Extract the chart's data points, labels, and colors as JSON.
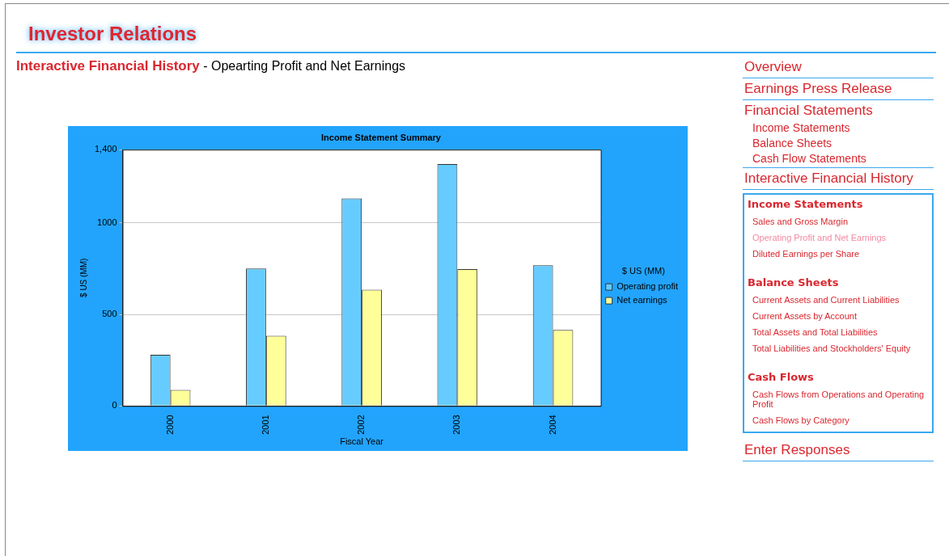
{
  "chart_data": [
    {
      "type": "bar",
      "title": "Income Statement Summary",
      "xlabel": "Fiscal Year",
      "ylabel": "$ US (MM)",
      "legend_title": "$ US (MM)",
      "categories": [
        "2000",
        "2001",
        "2002",
        "2003",
        "2004"
      ],
      "series": [
        {
          "name": "Operating profit",
          "color": "#66ccff",
          "values": [
            280,
            751,
            1134,
            1321,
            769
          ]
        },
        {
          "name": "Net earnings",
          "color": "#ffff99",
          "values": [
            88,
            383,
            635,
            748,
            415
          ]
        }
      ],
      "ylim": [
        0,
        1400
      ],
      "yticks": [
        0,
        500,
        1000,
        {
          "value": 1400,
          "label": "1,400"
        }
      ],
      "grid": "y",
      "legend": "right"
    },
    {
      "type": "other",
      "title": "Investor Relations",
      "annotations": [
        "Interactive Financial History",
        "- Opearting Profit and Net Earnings"
      ]
    },
    {
      "type": "other",
      "title": "Overview"
    },
    {
      "type": "other",
      "title": "Earnings Press Release"
    },
    {
      "type": "other",
      "title": "Financial Statements",
      "annotations": [
        "Income Statements",
        "Balance Sheets",
        "Cash Flow Statements"
      ]
    },
    {
      "type": "other",
      "title": "Interactive Financial History"
    },
    {
      "type": "other",
      "subtitle": "Income Statements",
      "annotations": [
        "Sales and Gross Margin",
        "Operating Profit and Net Earnings",
        "Diluted Earnings per Share"
      ]
    },
    {
      "type": "other",
      "subtitle": "Balance Sheets",
      "annotations": [
        "Current Assets and Current Liabilities",
        "Current Assets by Account",
        "Total Assets and Total Liabilities",
        "Total Liabilities and Stockholders' Equity"
      ]
    },
    {
      "type": "other",
      "subtitle": "Cash Flows",
      "annotations": [
        "Cash Flows from Operations and Operating Profit",
        "Cash Flows by Category"
      ]
    },
    {
      "type": "other",
      "title": "Enter Responses"
    }
  ]
}
